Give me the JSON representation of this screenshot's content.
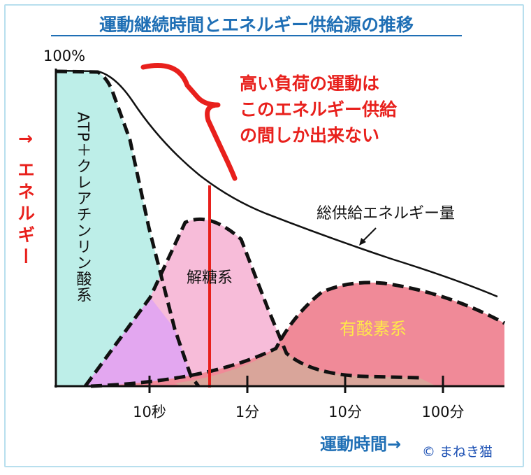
{
  "chart_data": {
    "type": "area",
    "title": "運動継続時間とエネルギー供給源の推移",
    "ylabel": "↑ エネルギー",
    "xlabel": "運動時間→",
    "ymax_label": "100%",
    "x_ticks": [
      "10秒",
      "1分",
      "10分",
      "100分"
    ],
    "series": [
      {
        "name": "ATP＋クレアチンリン酸系",
        "color": "#bdeee8"
      },
      {
        "name": "解糖系",
        "color": "#f7bcd9"
      },
      {
        "name": "有酸素系",
        "color": "#f08a98"
      }
    ],
    "overlap_colors": {
      "atp_glycolysis": "#e3a7f0",
      "glycolysis_aerobic": "#d9a59a"
    },
    "total_curve_label": "総供給エネルギー量",
    "annotation": {
      "lines": [
        "高い負荷の運動は",
        "このエネルギー供給",
        "の間しか出来ない"
      ],
      "color": "#e8201c"
    },
    "copyright": "© まねき猫"
  }
}
